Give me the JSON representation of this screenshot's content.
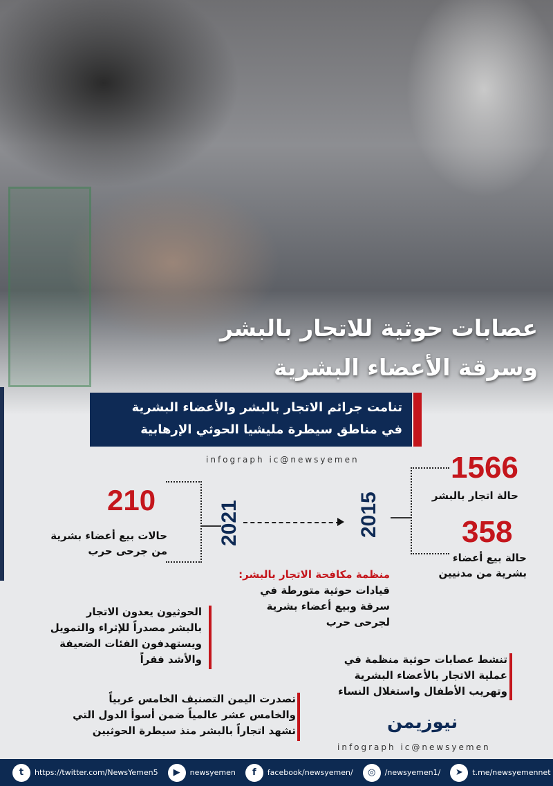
{
  "title": {
    "line1": "عصابات حوثية للاتجار بالبشر",
    "line2": "وسرقة الأعضاء البشرية"
  },
  "subtitle": {
    "line1": "تنامت جرائم الاتجار بالبشر والأعضاء البشرية",
    "line2": "في مناطق سيطرة مليشيا الحوثي الإرهابية"
  },
  "watermark": "infograph ic@newsyemen",
  "timeline": {
    "year_2015": "2015",
    "year_2021": "2021",
    "stat_1566": {
      "value": "1566",
      "label": "حالة اتجار بالبشر"
    },
    "stat_358": {
      "value": "358",
      "label1": "حالة بيع أعضاء",
      "label2": "بشرية من مدنيين"
    },
    "stat_210": {
      "value": "210",
      "label1": "حالات بيع أعضاء بشرية",
      "label2": "من جرحى حرب"
    }
  },
  "source": {
    "heading": "منظمة مكافحة الاتجار بالبشر:",
    "lines": [
      "قيادات حوثية متورطة في",
      "سرقة وبيع أعضاء بشرية",
      "لجرحى حرب"
    ]
  },
  "facts": [
    {
      "lines": [
        "الحوثيون يعدون الاتجار",
        "بالبشر مصدراً للإثراء والتمويل",
        "ويستهدفون الفئات الضعيفة",
        "والأشد فقراً"
      ]
    },
    {
      "lines": [
        "تنشط عصابات حوثية منظمة في",
        "عملية الاتجار بالأعضاء البشرية",
        "وتهريب الأطفال واستغلال النساء"
      ]
    },
    {
      "lines": [
        "تصدرت اليمن التصنيف الخامس عربياً",
        "والخامس عشر عالمياً ضمن أسوأ الدول التي",
        "تشهد اتجاراً بالبشر منذ سيطرة الحوثيين"
      ]
    }
  ],
  "logo": "نيوزيمن",
  "footer": {
    "twitter": "https://twitter.com/NewsYemen5",
    "youtube": "newsyemen",
    "facebook": "facebook/newsyemen/",
    "instagram": "/newsyemen1/",
    "telegram": "t.me/newsyemennet"
  },
  "colors": {
    "navy": "#0e2a55",
    "red": "#c4161c"
  }
}
